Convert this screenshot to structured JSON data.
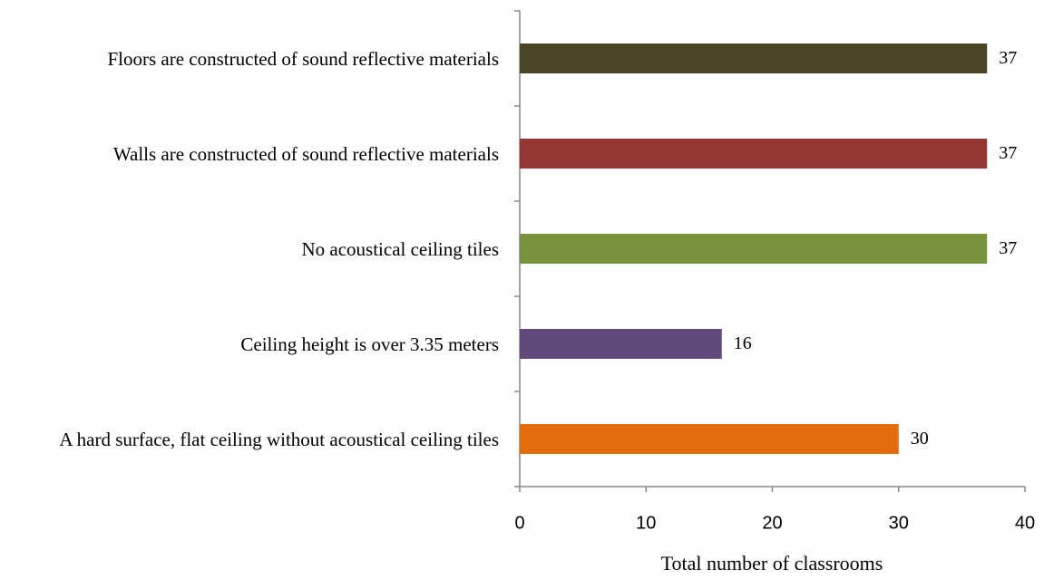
{
  "chart_data": {
    "type": "hbar",
    "x_label": "Total number of classrooms",
    "categories": [
      "Floors are constructed of sound reflective materials",
      "Walls are constructed of sound reflective materials",
      "No acoustical ceiling tiles",
      "Ceiling height is over 3.35 meters",
      "A hard surface, flat ceiling without acoustical ceiling tiles"
    ],
    "values": [
      37,
      37,
      37,
      16,
      30
    ],
    "colors": [
      "#4a4325",
      "#943634",
      "#77933c",
      "#604a7b",
      "#e46c0a"
    ],
    "xlim": [
      0,
      40
    ],
    "xticks": [
      0,
      10,
      20,
      30,
      40
    ],
    "grid": false
  }
}
